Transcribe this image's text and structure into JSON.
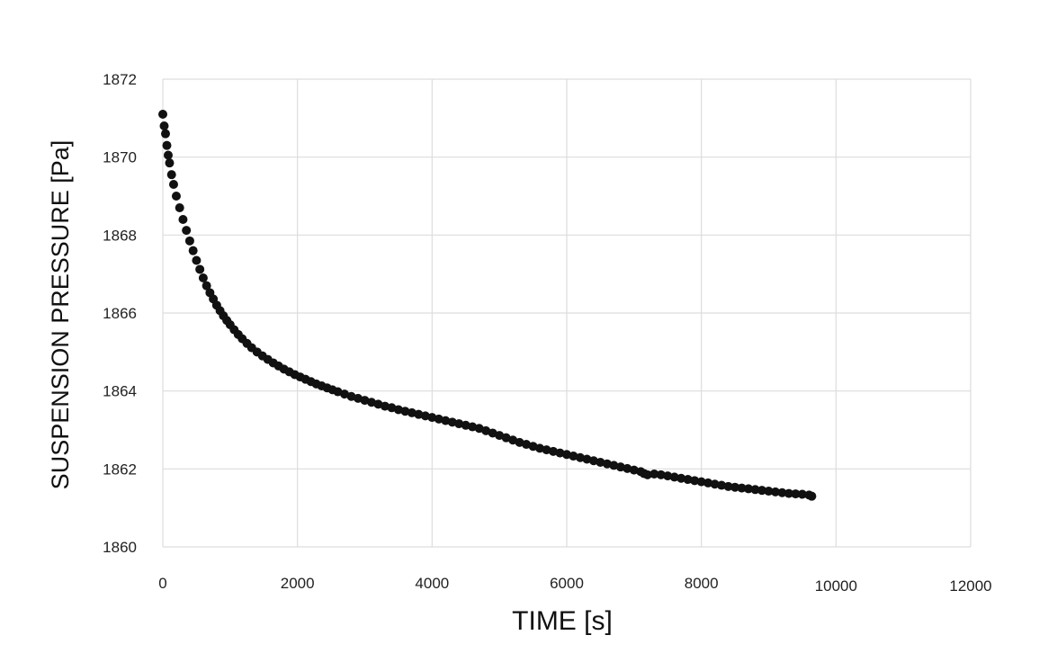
{
  "chart_data": {
    "type": "scatter",
    "title": "",
    "xlabel": "TIME [s]",
    "ylabel": "SUSPENSION PRESSURE [Pa]",
    "xlim": [
      0,
      12000
    ],
    "ylim": [
      1860,
      1872
    ],
    "x_ticks": [
      0,
      2000,
      4000,
      6000,
      8000,
      10000,
      12000
    ],
    "y_ticks": [
      1860,
      1862,
      1864,
      1866,
      1868,
      1870,
      1872
    ],
    "grid": true,
    "legend": "none",
    "marker_color": "#111111",
    "series": [
      {
        "values_x": [
          0,
          20,
          40,
          60,
          80,
          100,
          130,
          160,
          200,
          250,
          300,
          350,
          400,
          450,
          500,
          550,
          600,
          650,
          700,
          750,
          800,
          850,
          900,
          950,
          1000,
          1060,
          1120,
          1180,
          1250,
          1320,
          1400,
          1480,
          1560,
          1640,
          1720,
          1800,
          1880,
          1960,
          2040,
          2120,
          2200,
          2280,
          2360,
          2440,
          2520,
          2600,
          2700,
          2800,
          2900,
          3000,
          3100,
          3200,
          3300,
          3400,
          3500,
          3600,
          3700,
          3800,
          3900,
          4000,
          4100,
          4200,
          4300,
          4400,
          4500,
          4600,
          4700,
          4800,
          4900,
          5000,
          5100,
          5200,
          5300,
          5400,
          5500,
          5600,
          5700,
          5800,
          5900,
          6000,
          6100,
          6200,
          6300,
          6400,
          6500,
          6600,
          6700,
          6800,
          6900,
          7000,
          7100,
          7150,
          7200,
          7300,
          7400,
          7500,
          7600,
          7700,
          7800,
          7900,
          8000,
          8100,
          8200,
          8300,
          8400,
          8500,
          8600,
          8700,
          8800,
          8900,
          9000,
          9100,
          9200,
          9300,
          9400,
          9500,
          9600,
          9640
        ],
        "values_y": [
          1871.1,
          1870.8,
          1870.6,
          1870.3,
          1870.05,
          1869.85,
          1869.55,
          1869.3,
          1869.0,
          1868.7,
          1868.4,
          1868.12,
          1867.85,
          1867.6,
          1867.35,
          1867.12,
          1866.9,
          1866.7,
          1866.52,
          1866.36,
          1866.2,
          1866.06,
          1865.93,
          1865.81,
          1865.7,
          1865.57,
          1865.45,
          1865.34,
          1865.22,
          1865.11,
          1865.0,
          1864.9,
          1864.81,
          1864.72,
          1864.64,
          1864.56,
          1864.49,
          1864.42,
          1864.36,
          1864.3,
          1864.24,
          1864.18,
          1864.13,
          1864.08,
          1864.03,
          1863.98,
          1863.92,
          1863.86,
          1863.81,
          1863.76,
          1863.71,
          1863.66,
          1863.61,
          1863.57,
          1863.52,
          1863.48,
          1863.44,
          1863.4,
          1863.36,
          1863.32,
          1863.28,
          1863.24,
          1863.2,
          1863.16,
          1863.12,
          1863.08,
          1863.04,
          1862.98,
          1862.92,
          1862.86,
          1862.8,
          1862.74,
          1862.68,
          1862.63,
          1862.58,
          1862.53,
          1862.49,
          1862.45,
          1862.41,
          1862.37,
          1862.33,
          1862.29,
          1862.25,
          1862.21,
          1862.17,
          1862.13,
          1862.09,
          1862.05,
          1862.01,
          1861.97,
          1861.93,
          1861.88,
          1861.85,
          1861.87,
          1861.85,
          1861.82,
          1861.79,
          1861.76,
          1861.73,
          1861.7,
          1861.67,
          1861.64,
          1861.61,
          1861.58,
          1861.55,
          1861.53,
          1861.51,
          1861.49,
          1861.47,
          1861.45,
          1861.43,
          1861.41,
          1861.39,
          1861.37,
          1861.36,
          1861.35,
          1861.33,
          1861.3
        ]
      }
    ]
  }
}
